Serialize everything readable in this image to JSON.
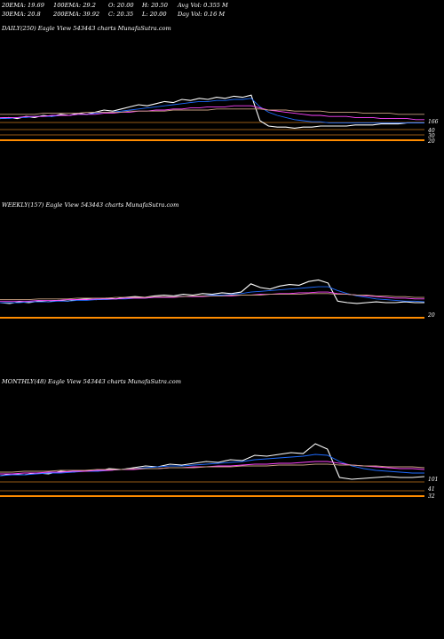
{
  "header": {
    "r1": [
      "20EMA: 19.69",
      "100EMA: 29.2",
      "O: 20.00",
      "H: 20.50",
      "Avg Vol: 0.355  M"
    ],
    "r2": [
      "30EMA: 20.8",
      "200EMA: 39.92",
      "C: 20.35",
      "L: 20.00",
      "Day Vol: 0.16  M"
    ]
  },
  "chart_data": [
    {
      "type": "line",
      "title": "DAILY(250) Eagle  View  543443 charts MunafaSutra.com",
      "tick_labels": [
        "166",
        "40",
        "30",
        "20"
      ],
      "ylim": [
        0,
        200
      ],
      "series": [
        {
          "color": "#ffffff",
          "values": [
            22,
            23,
            22,
            24,
            23,
            25,
            24,
            26,
            25,
            27,
            26,
            28,
            30,
            29,
            31,
            33,
            35,
            34,
            36,
            38,
            37,
            40,
            39,
            41,
            40,
            42,
            41,
            43,
            42,
            44,
            20,
            15,
            14,
            14,
            13,
            14,
            14,
            15,
            15,
            15,
            15,
            16,
            16,
            16,
            17,
            17,
            17,
            18,
            18,
            18
          ]
        },
        {
          "color": "#1e6bff",
          "values": [
            22,
            22,
            23,
            23,
            24,
            24,
            24,
            25,
            25,
            26,
            26,
            27,
            28,
            28,
            29,
            30,
            31,
            32,
            33,
            34,
            35,
            36,
            37,
            38,
            38,
            39,
            39,
            40,
            40,
            41,
            33,
            28,
            25,
            23,
            21,
            20,
            19,
            19,
            18,
            18,
            18,
            18,
            18,
            18,
            18,
            18,
            18,
            18,
            18,
            18
          ]
        },
        {
          "color": "#ff44ff",
          "values": [
            23,
            23,
            23,
            24,
            24,
            24,
            25,
            25,
            25,
            26,
            26,
            26,
            27,
            27,
            28,
            28,
            29,
            29,
            30,
            30,
            31,
            31,
            32,
            32,
            33,
            33,
            33,
            34,
            34,
            34,
            32,
            30,
            29,
            28,
            27,
            26,
            25,
            25,
            24,
            24,
            24,
            23,
            23,
            23,
            22,
            22,
            22,
            22,
            21,
            21
          ]
        },
        {
          "color": "#c8a080",
          "values": [
            26,
            26,
            26,
            26,
            26,
            27,
            27,
            27,
            27,
            27,
            28,
            28,
            28,
            28,
            28,
            29,
            29,
            29,
            29,
            29,
            30,
            30,
            30,
            30,
            30,
            31,
            31,
            31,
            31,
            31,
            31,
            30,
            30,
            30,
            29,
            29,
            29,
            29,
            28,
            28,
            28,
            28,
            27,
            27,
            27,
            27,
            26,
            26,
            26,
            26
          ]
        }
      ]
    },
    {
      "type": "line",
      "title": "WEEKLY(157) Eagle  View  543443 charts MunafaSutra.com",
      "tick_labels": [
        "20"
      ],
      "ylim": [
        0,
        200
      ],
      "series": [
        {
          "color": "#ffffff",
          "values": [
            20,
            19,
            21,
            20,
            22,
            21,
            23,
            22,
            24,
            25,
            24,
            26,
            25,
            27,
            28,
            27,
            29,
            30,
            29,
            31,
            30,
            32,
            31,
            33,
            32,
            34,
            45,
            40,
            38,
            42,
            44,
            43,
            48,
            50,
            46,
            22,
            20,
            19,
            20,
            21,
            20,
            20,
            21,
            20,
            20
          ]
        },
        {
          "color": "#1e6bff",
          "values": [
            20,
            20,
            20,
            21,
            21,
            21,
            22,
            22,
            23,
            23,
            24,
            24,
            25,
            25,
            26,
            26,
            27,
            27,
            28,
            28,
            29,
            29,
            30,
            30,
            31,
            32,
            34,
            35,
            36,
            37,
            38,
            39,
            40,
            41,
            41,
            36,
            32,
            29,
            27,
            25,
            24,
            23,
            22,
            22,
            21
          ]
        },
        {
          "color": "#ff44ff",
          "values": [
            22,
            22,
            22,
            22,
            23,
            23,
            23,
            24,
            24,
            24,
            25,
            25,
            25,
            26,
            26,
            26,
            27,
            27,
            27,
            28,
            28,
            28,
            29,
            29,
            29,
            30,
            30,
            31,
            31,
            32,
            32,
            33,
            33,
            34,
            34,
            32,
            31,
            30,
            29,
            28,
            27,
            26,
            26,
            25,
            25
          ]
        },
        {
          "color": "#c8a080",
          "values": [
            24,
            24,
            24,
            24,
            25,
            25,
            25,
            25,
            26,
            26,
            26,
            26,
            27,
            27,
            27,
            27,
            28,
            28,
            28,
            28,
            29,
            29,
            29,
            29,
            30,
            30,
            30,
            30,
            31,
            31,
            31,
            31,
            32,
            32,
            32,
            31,
            31,
            30,
            30,
            29,
            29,
            28,
            28,
            27,
            27
          ]
        }
      ]
    },
    {
      "type": "line",
      "title": "MONTHLY(48) Eagle  View  543443 charts MunafaSutra.com",
      "tick_labels": [
        "101",
        "41",
        "32"
      ],
      "ylim": [
        0,
        200
      ],
      "series": [
        {
          "color": "#ffffff",
          "values": [
            22,
            24,
            23,
            25,
            24,
            27,
            26,
            28,
            27,
            30,
            29,
            31,
            33,
            32,
            35,
            34,
            36,
            38,
            37,
            40,
            39,
            45,
            44,
            46,
            48,
            47,
            58,
            52,
            20,
            18,
            19,
            20,
            21,
            20,
            20,
            21
          ]
        },
        {
          "color": "#1e6bff",
          "values": [
            22,
            23,
            23,
            24,
            25,
            25,
            26,
            27,
            27,
            28,
            29,
            30,
            31,
            32,
            33,
            33,
            34,
            35,
            36,
            37,
            38,
            40,
            41,
            42,
            43,
            44,
            46,
            45,
            38,
            33,
            30,
            28,
            27,
            26,
            25,
            25
          ]
        },
        {
          "color": "#ff44ff",
          "values": [
            24,
            24,
            25,
            25,
            26,
            26,
            27,
            27,
            28,
            28,
            29,
            29,
            30,
            30,
            31,
            31,
            32,
            32,
            33,
            33,
            34,
            35,
            35,
            36,
            36,
            37,
            38,
            38,
            36,
            34,
            33,
            32,
            31,
            30,
            30,
            29
          ]
        },
        {
          "color": "#c8a080",
          "values": [
            26,
            26,
            27,
            27,
            27,
            28,
            28,
            28,
            29,
            29,
            29,
            30,
            30,
            30,
            31,
            31,
            31,
            32,
            32,
            32,
            33,
            33,
            33,
            34,
            34,
            34,
            35,
            35,
            34,
            34,
            33,
            33,
            32,
            32,
            32,
            31
          ]
        }
      ]
    }
  ]
}
